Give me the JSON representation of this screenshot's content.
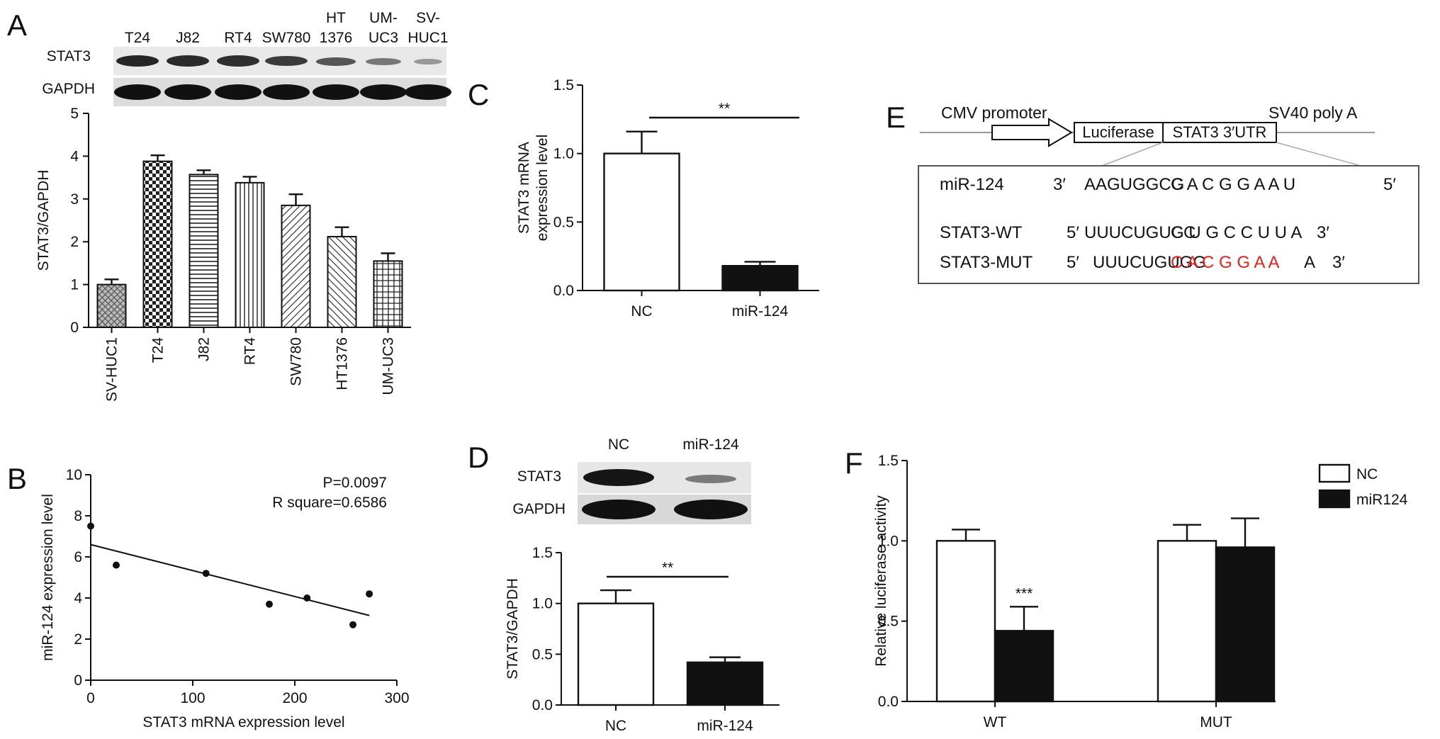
{
  "panels": {
    "A": "A",
    "B": "B",
    "C": "C",
    "D": "D",
    "E": "E",
    "F": "F"
  },
  "blotA": {
    "lanes": [
      {
        "l1": "T24",
        "l2": ""
      },
      {
        "l1": "J82",
        "l2": ""
      },
      {
        "l1": "RT4",
        "l2": ""
      },
      {
        "l1": "SW780",
        "l2": ""
      },
      {
        "l1": "HT",
        "l2": "1376"
      },
      {
        "l1": "UM-",
        "l2": "UC3"
      },
      {
        "l1": "SV-",
        "l2": "HUC1"
      }
    ],
    "rows": [
      "STAT3",
      "GAPDH"
    ]
  },
  "blotD": {
    "lanes": [
      "NC",
      "miR-124"
    ],
    "rows": [
      "STAT3",
      "GAPDH"
    ]
  },
  "constructE": {
    "promoter": "CMV promoter",
    "polyA": "SV40 poly A",
    "luciferase": "Luciferase",
    "utr": "STAT3 3′UTR",
    "rows": [
      {
        "name": "miR-124",
        "left": "3′",
        "seq": "AAGUGGCG",
        "site": "C A C G G A A U",
        "right": "5′",
        "siteColor": "#111111"
      },
      {
        "name": "STAT3-WT",
        "left": "5′",
        "seq": "UUUCUGUCC",
        "site": "G U G C C U U A",
        "right": "3′",
        "siteColor": "#111111"
      },
      {
        "name": "STAT3-MUT",
        "left": "5′",
        "seq": "UUUCUGUGG",
        "site": "C A C G G A A",
        "tail": "A",
        "right": "3′",
        "siteColor": "#e8211d"
      }
    ]
  },
  "chart_data": [
    {
      "panel": "A",
      "type": "bar",
      "categories": [
        "SV-HUC1",
        "T24",
        "J82",
        "RT4",
        "SW780",
        "HT1376",
        "UM-UC3"
      ],
      "values": [
        1.0,
        3.88,
        3.57,
        3.38,
        2.85,
        2.12,
        1.55
      ],
      "errors": [
        0.12,
        0.14,
        0.1,
        0.14,
        0.26,
        0.22,
        0.18
      ],
      "ylabel": "STAT3/GAPDH",
      "ylim": [
        0,
        5
      ],
      "yticks": [
        "0",
        "1",
        "2",
        "3",
        "4",
        "5"
      ]
    },
    {
      "panel": "B",
      "type": "scatter",
      "points": [
        [
          0,
          7.5
        ],
        [
          25,
          5.6
        ],
        [
          113,
          5.2
        ],
        [
          175,
          3.7
        ],
        [
          212,
          4.0
        ],
        [
          257,
          2.7
        ],
        [
          273,
          4.2
        ]
      ],
      "fit": {
        "x": [
          0,
          273
        ],
        "y": [
          6.6,
          3.15
        ]
      },
      "xlabel": "STAT3 mRNA expression level",
      "ylabel": "miR-124 expression level",
      "xlim": [
        0,
        300
      ],
      "ylim": [
        0,
        10
      ],
      "xticks": [
        "0",
        "100",
        "200",
        "300"
      ],
      "yticks": [
        "0",
        "2",
        "4",
        "6",
        "8",
        "10"
      ],
      "annotations": [
        "P=0.0097",
        "R square=0.6586"
      ]
    },
    {
      "panel": "C",
      "type": "bar",
      "categories": [
        "NC",
        "miR-124"
      ],
      "values": [
        1.0,
        0.18
      ],
      "errors": [
        0.16,
        0.03
      ],
      "fills": [
        "#ffffff",
        "#111111"
      ],
      "ylabel_lines": [
        "STAT3 mRNA",
        "expression level"
      ],
      "ylim": [
        0,
        1.5
      ],
      "yticks": [
        "0.0",
        "0.5",
        "1.0",
        "1.5"
      ],
      "significance": "**"
    },
    {
      "panel": "D",
      "type": "bar",
      "categories": [
        "NC",
        "miR-124"
      ],
      "values": [
        1.0,
        0.42
      ],
      "errors": [
        0.13,
        0.05
      ],
      "fills": [
        "#ffffff",
        "#111111"
      ],
      "ylabel": "STAT3/GAPDH",
      "ylim": [
        0,
        1.5
      ],
      "yticks": [
        "0.0",
        "0.5",
        "1.0",
        "1.5"
      ],
      "significance": "**"
    },
    {
      "panel": "F",
      "type": "bar",
      "categories": [
        "WT",
        "MUT"
      ],
      "series": [
        {
          "name": "NC",
          "values": [
            1.0,
            1.0
          ],
          "errors": [
            0.07,
            0.1
          ],
          "color": "#ffffff"
        },
        {
          "name": "miR124",
          "values": [
            0.44,
            0.96
          ],
          "errors": [
            0.15,
            0.18
          ],
          "color": "#111111"
        }
      ],
      "ylabel": "Relative luciferase activity",
      "ylim": [
        0,
        1.5
      ],
      "yticks": [
        "0.0",
        "0.5",
        "1.0",
        "1.5"
      ],
      "significance": "***",
      "legend": "top-right"
    }
  ]
}
